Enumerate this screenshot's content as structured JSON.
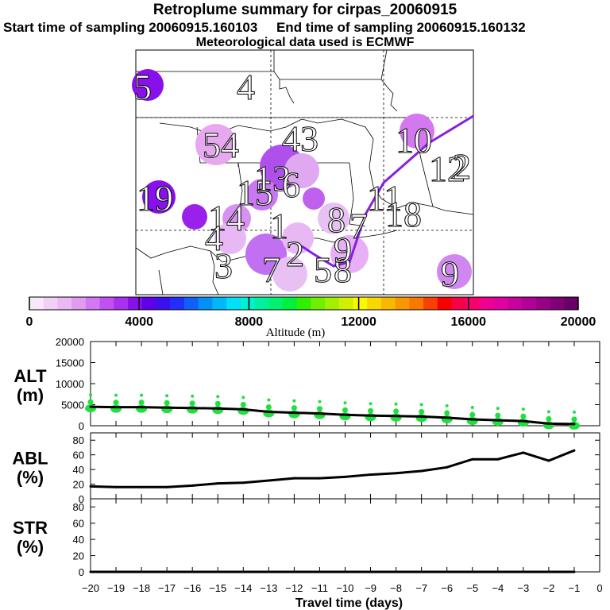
{
  "header": {
    "title": "Retroplume summary for cirpas_20060915",
    "start_label": "Start time of sampling 20060915.160103",
    "end_label": "End time of sampling 20060915.160132",
    "met_label": "Meteorological data used is ECMWF"
  },
  "map": {
    "day_labels": [
      "5",
      "4",
      "54",
      "43",
      "10",
      "12",
      "15",
      "19",
      "14",
      "11",
      "13",
      "18",
      "2",
      "6",
      "4",
      "8",
      "7",
      "3",
      "2",
      "5",
      "8",
      "9",
      "9",
      "7",
      "1"
    ]
  },
  "colorbar": {
    "ticks": [
      "0",
      "4000",
      "8000",
      "12000",
      "16000",
      "20000"
    ],
    "label": "Altitude (m)",
    "colors": [
      "#f8e8fa",
      "#f2d0f6",
      "#eab8f4",
      "#e09cf2",
      "#d278f0",
      "#c050f0",
      "#a830ee",
      "#8810ec",
      "#6000e8",
      "#3a10f0",
      "#2030f8",
      "#1060f8",
      "#0090f8",
      "#00b8f8",
      "#00e0f8",
      "#00f0d0",
      "#00f0a0",
      "#00f070",
      "#00f040",
      "#30f000",
      "#70f000",
      "#a0f000",
      "#d0f000",
      "#f8f800",
      "#f8d800",
      "#f8b800",
      "#f89800",
      "#f87800",
      "#f84000",
      "#f80000",
      "#f80048",
      "#f80070",
      "#f00090",
      "#e000a0",
      "#c800a0",
      "#b00098",
      "#980088",
      "#800078",
      "#680068"
    ]
  },
  "chart_data": [
    {
      "type": "line",
      "name": "ALT",
      "ylabel": "ALT",
      "yunit": "(m)",
      "x": [
        -20,
        -19,
        -18,
        -17,
        -16,
        -15,
        -14,
        -13,
        -12,
        -11,
        -10,
        -9,
        -8,
        -7,
        -6,
        -5,
        -4,
        -3,
        -2,
        -1
      ],
      "values": [
        4500,
        4400,
        4400,
        4300,
        4200,
        4100,
        3900,
        3300,
        3100,
        2900,
        2600,
        2400,
        2300,
        2200,
        1900,
        1500,
        1300,
        1100,
        500,
        400
      ],
      "ylim": [
        0,
        20000
      ],
      "yticks": [
        "0",
        "5000",
        "10000",
        "15000",
        "20000"
      ],
      "yticks_num": [
        0,
        5000,
        10000,
        15000,
        20000
      ],
      "marker_color": "#20e040"
    },
    {
      "type": "line",
      "name": "ABL",
      "ylabel": "ABL",
      "yunit": "(%)",
      "x": [
        -20,
        -19,
        -18,
        -17,
        -16,
        -15,
        -14,
        -13,
        -12,
        -11,
        -10,
        -9,
        -8,
        -7,
        -6,
        -5,
        -4,
        -3,
        -2,
        -1
      ],
      "values": [
        17,
        16,
        16,
        16,
        18,
        21,
        22,
        25,
        28,
        28,
        30,
        33,
        35,
        38,
        43,
        54,
        54,
        63,
        52,
        66
      ],
      "ylim": [
        0,
        90
      ],
      "yticks": [
        "0",
        "20",
        "40",
        "60",
        "80"
      ],
      "yticks_num": [
        0,
        20,
        40,
        60,
        80
      ]
    },
    {
      "type": "line",
      "name": "STR",
      "ylabel": "STR",
      "yunit": "(%)",
      "x": [
        -20,
        -19,
        -18,
        -17,
        -16,
        -15,
        -14,
        -13,
        -12,
        -11,
        -10,
        -9,
        -8,
        -7,
        -6,
        -5,
        -4,
        -3,
        -2,
        -1
      ],
      "values": [
        0,
        0,
        0,
        0,
        0,
        0,
        0,
        0,
        0,
        0,
        0,
        0,
        0,
        0,
        0,
        0,
        0,
        0,
        0,
        0
      ],
      "ylim": [
        0,
        90
      ],
      "yticks": [
        "0",
        "20",
        "40",
        "60",
        "80"
      ],
      "yticks_num": [
        0,
        20,
        40,
        60,
        80
      ],
      "xlabel": "Travel time (days)",
      "xticks": [
        "−20",
        "−19",
        "−18",
        "−17",
        "−16",
        "−15",
        "−14",
        "−13",
        "−12",
        "−11",
        "−10",
        "−9",
        "−8",
        "−7",
        "−6",
        "−5",
        "−4",
        "−3",
        "−2",
        "−1",
        "0"
      ]
    }
  ]
}
